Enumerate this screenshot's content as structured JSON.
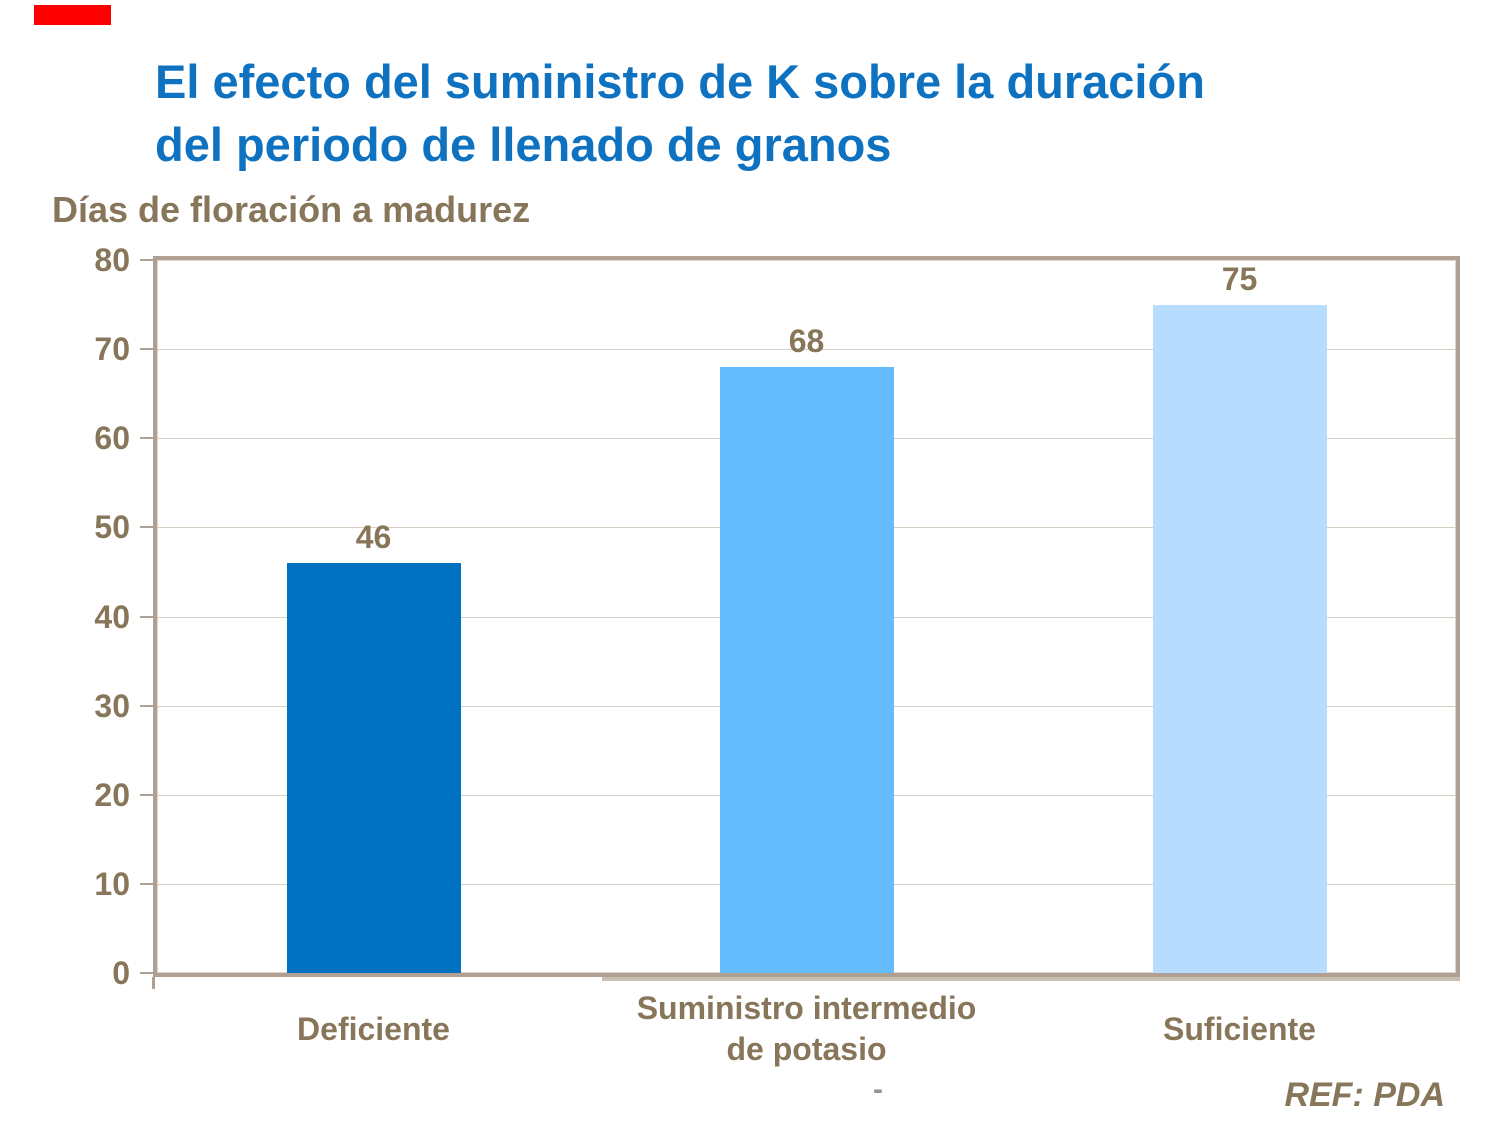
{
  "slide": {
    "title_line1": "El efecto del suministro de K sobre la duración",
    "title_line2": "del periodo de llenado de granos",
    "source_ref": "REF: PDA",
    "stray_dash": "-"
  },
  "colors": {
    "title": "#0E72C0",
    "chart_text_brown": "#877659",
    "frame_tan": "#AFA093",
    "gridline": "#D6CEC3",
    "axis_shadow": "#C8BEB2",
    "red_marker": "#FF0000",
    "bars": [
      "#0070C0",
      "#65BCFD",
      "#B8DCFE"
    ]
  },
  "chart_data": {
    "type": "bar",
    "title": "",
    "ylabel": "Días de floración a madurez",
    "xlabel": "",
    "categories": [
      "Deficiente",
      "Suministro intermedio de potasio",
      "Suficiente"
    ],
    "category_lines": [
      [
        "Deficiente"
      ],
      [
        "Suministro intermedio",
        "de potasio"
      ],
      [
        "Suficiente"
      ]
    ],
    "values": [
      46,
      68,
      75
    ],
    "data_labels": [
      "46",
      "68",
      "75"
    ],
    "bar_colors": [
      "#0070C0",
      "#65BCFD",
      "#B8DCFE"
    ],
    "ylim": [
      0,
      80
    ],
    "ytick_step": 10,
    "ytick_labels": [
      "0",
      "10",
      "20",
      "30",
      "40",
      "50",
      "60",
      "70",
      "80"
    ],
    "grid": true,
    "legend": false,
    "source": "REF: PDA"
  }
}
